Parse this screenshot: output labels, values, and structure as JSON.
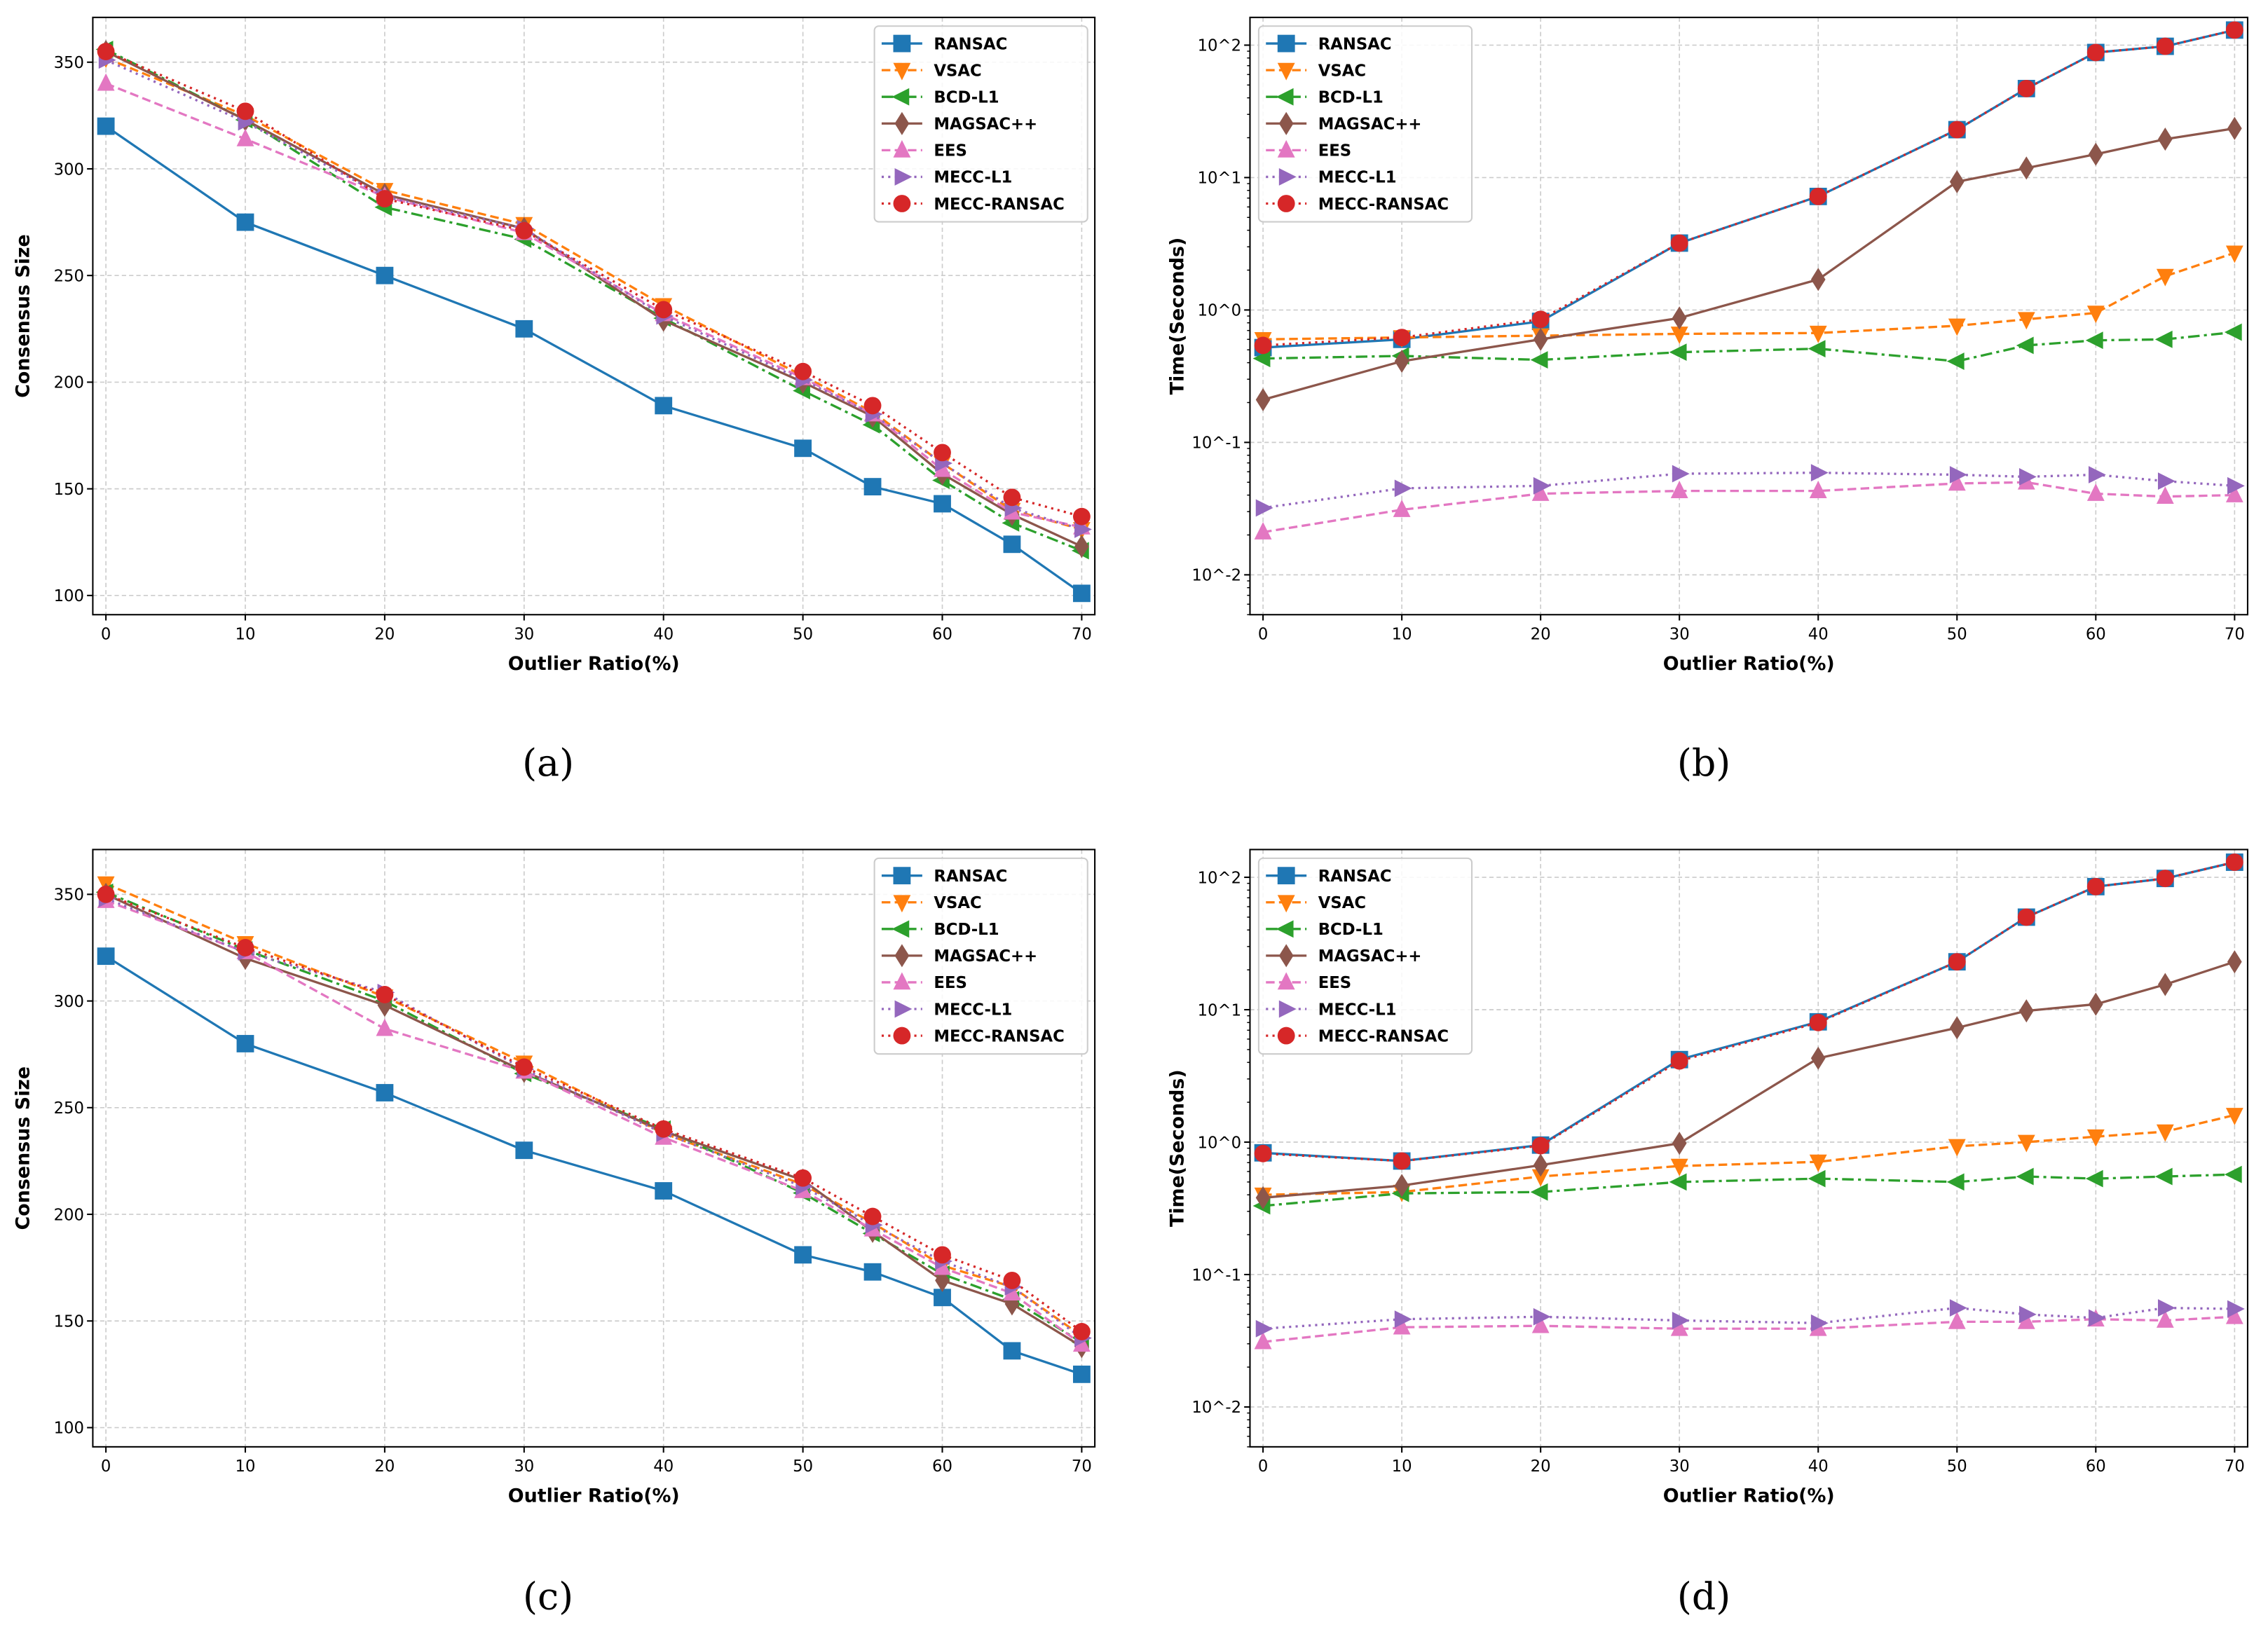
{
  "series_styles": [
    {
      "name": "RANSAC",
      "color": "#1f77b4",
      "dash": "",
      "marker": "square"
    },
    {
      "name": "VSAC",
      "color": "#ff7f0e",
      "dash": "6 3",
      "marker": "tri-down"
    },
    {
      "name": "BCD-L1",
      "color": "#2ca02c",
      "dash": "8 3 2 3",
      "marker": "tri-left"
    },
    {
      "name": "MAGSAC++",
      "color": "#8c564b",
      "dash": "",
      "marker": "diamond"
    },
    {
      "name": "EES",
      "color": "#e377c2",
      "dash": "6 3",
      "marker": "tri-up"
    },
    {
      "name": "MECC-L1",
      "color": "#9467bd",
      "dash": "1.5 3",
      "marker": "tri-right"
    },
    {
      "name": "MECC-RANSAC",
      "color": "#d62728",
      "dash": "1.5 3",
      "marker": "circle"
    }
  ],
  "chart_data": [
    {
      "panel": "(a)",
      "type": "line",
      "xlabel": "Outlier Ratio(%)",
      "ylabel": "Consensus Size",
      "yscale": "linear",
      "ylim": [
        91,
        371
      ],
      "xlim": [
        -0.94,
        70.94
      ],
      "xticks": [
        0,
        10,
        20,
        30,
        40,
        50,
        60,
        70
      ],
      "yticks": [
        100,
        150,
        200,
        250,
        300,
        350
      ],
      "ytick_labels": [
        "100",
        "150",
        "200",
        "250",
        "300",
        "350"
      ],
      "legend": "top-right",
      "grid": true,
      "x": [
        0,
        10,
        20,
        30,
        40,
        50,
        55,
        60,
        65,
        70
      ],
      "series": [
        {
          "name": "RANSAC",
          "values": [
            320,
            275,
            250,
            225,
            189,
            169,
            151,
            143,
            124,
            101
          ]
        },
        {
          "name": "VSAC",
          "values": [
            352,
            325,
            290,
            274,
            236,
            203,
            186,
            162,
            140,
            131
          ]
        },
        {
          "name": "BCD-L1",
          "values": [
            356,
            323,
            282,
            267,
            230,
            196,
            180,
            154,
            134,
            121
          ]
        },
        {
          "name": "MAGSAC++",
          "values": [
            355,
            323,
            288,
            272,
            229,
            200,
            184,
            157,
            138,
            123
          ]
        },
        {
          "name": "EES",
          "values": [
            340,
            314,
            287,
            270,
            232,
            202,
            185,
            159,
            139,
            132
          ]
        },
        {
          "name": "MECC-L1",
          "values": [
            351,
            322,
            287,
            272,
            231,
            201,
            185,
            162,
            141,
            131
          ]
        },
        {
          "name": "MECC-RANSAC",
          "values": [
            355,
            327,
            286,
            271,
            234,
            205,
            189,
            167,
            146,
            137
          ]
        }
      ]
    },
    {
      "panel": "(b)",
      "type": "line",
      "xlabel": "Outlier Ratio(%)",
      "ylabel": "Time(Seconds)",
      "yscale": "log",
      "ylim": [
        0.005,
        162
      ],
      "xlim": [
        -0.94,
        70.94
      ],
      "xticks": [
        0,
        10,
        20,
        30,
        40,
        50,
        60,
        70
      ],
      "yticks": [
        0.01,
        0.1,
        1,
        10,
        100
      ],
      "ytick_labels": [
        "10^-2",
        "10^-1",
        "10^0",
        "10^1",
        "10^2"
      ],
      "legend": "top-left",
      "grid": true,
      "x": [
        0,
        10,
        20,
        30,
        40,
        50,
        55,
        60,
        65,
        70
      ],
      "series": [
        {
          "name": "RANSAC",
          "values": [
            0.52,
            0.6,
            0.82,
            3.2,
            7.2,
            23,
            47,
            88,
            98,
            130
          ]
        },
        {
          "name": "VSAC",
          "values": [
            0.6,
            0.62,
            0.64,
            0.66,
            0.67,
            0.76,
            0.85,
            0.95,
            1.8,
            2.7
          ]
        },
        {
          "name": "BCD-L1",
          "values": [
            0.43,
            0.45,
            0.42,
            0.48,
            0.51,
            0.41,
            0.54,
            0.59,
            0.6,
            0.68
          ]
        },
        {
          "name": "MAGSAC++",
          "values": [
            0.21,
            0.41,
            0.6,
            0.87,
            1.7,
            9.3,
            11.8,
            15,
            19.5,
            23.5
          ]
        },
        {
          "name": "EES",
          "values": [
            0.021,
            0.031,
            0.041,
            0.043,
            0.043,
            0.049,
            0.05,
            0.041,
            0.039,
            0.04
          ]
        },
        {
          "name": "MECC-L1",
          "values": [
            0.032,
            0.045,
            0.047,
            0.058,
            0.059,
            0.057,
            0.055,
            0.057,
            0.051,
            0.047
          ]
        },
        {
          "name": "MECC-RANSAC",
          "values": [
            0.54,
            0.62,
            0.85,
            3.2,
            7.2,
            23,
            47,
            88,
            98,
            130
          ]
        }
      ]
    },
    {
      "panel": "(c)",
      "type": "line",
      "xlabel": "Outlier Ratio(%)",
      "ylabel": "Consensus Size",
      "yscale": "linear",
      "ylim": [
        91,
        371
      ],
      "xlim": [
        -0.94,
        70.94
      ],
      "xticks": [
        0,
        10,
        20,
        30,
        40,
        50,
        60,
        70
      ],
      "yticks": [
        100,
        150,
        200,
        250,
        300,
        350
      ],
      "ytick_labels": [
        "100",
        "150",
        "200",
        "250",
        "300",
        "350"
      ],
      "legend": "top-right",
      "grid": true,
      "x": [
        0,
        10,
        20,
        30,
        40,
        50,
        55,
        60,
        65,
        70
      ],
      "series": [
        {
          "name": "RANSAC",
          "values": [
            321,
            280,
            257,
            230,
            211,
            181,
            173,
            161,
            136,
            125
          ]
        },
        {
          "name": "VSAC",
          "values": [
            355,
            327,
            302,
            271,
            238,
            214,
            196,
            176,
            166,
            143
          ]
        },
        {
          "name": "BCD-L1",
          "values": [
            351,
            324,
            300,
            266,
            240,
            210,
            191,
            172,
            160,
            140
          ]
        },
        {
          "name": "MAGSAC++",
          "values": [
            350,
            320,
            298,
            267,
            239,
            216,
            192,
            169,
            158,
            138
          ]
        },
        {
          "name": "EES",
          "values": [
            347,
            323,
            287,
            267,
            236,
            211,
            193,
            175,
            163,
            139
          ]
        },
        {
          "name": "MECC-L1",
          "values": [
            348,
            323,
            304,
            268,
            238,
            213,
            195,
            178,
            166,
            142
          ]
        },
        {
          "name": "MECC-RANSAC",
          "values": [
            350,
            325,
            303,
            269,
            240,
            217,
            199,
            181,
            169,
            145
          ]
        }
      ]
    },
    {
      "panel": "(d)",
      "type": "line",
      "xlabel": "Outlier Ratio(%)",
      "ylabel": "Time(Seconds)",
      "yscale": "log",
      "ylim": [
        0.005,
        162
      ],
      "xlim": [
        -0.94,
        70.94
      ],
      "xticks": [
        0,
        10,
        20,
        30,
        40,
        50,
        60,
        70
      ],
      "yticks": [
        0.01,
        0.1,
        1,
        10,
        100
      ],
      "ytick_labels": [
        "10^-2",
        "10^-1",
        "10^0",
        "10^1",
        "10^2"
      ],
      "legend": "top-left",
      "grid": true,
      "x": [
        0,
        10,
        20,
        30,
        40,
        50,
        55,
        60,
        65,
        70
      ],
      "series": [
        {
          "name": "RANSAC",
          "values": [
            0.83,
            0.72,
            0.95,
            4.2,
            8.1,
            23,
            50,
            85,
            98,
            130
          ]
        },
        {
          "name": "VSAC",
          "values": [
            0.4,
            0.42,
            0.55,
            0.66,
            0.71,
            0.93,
            1.0,
            1.1,
            1.2,
            1.6
          ]
        },
        {
          "name": "BCD-L1",
          "values": [
            0.33,
            0.41,
            0.42,
            0.5,
            0.53,
            0.5,
            0.55,
            0.53,
            0.55,
            0.57
          ]
        },
        {
          "name": "MAGSAC++",
          "values": [
            0.38,
            0.47,
            0.67,
            0.98,
            4.3,
            7.3,
            9.8,
            11,
            15.5,
            23
          ]
        },
        {
          "name": "EES",
          "values": [
            0.031,
            0.04,
            0.041,
            0.039,
            0.039,
            0.044,
            0.044,
            0.046,
            0.045,
            0.048
          ]
        },
        {
          "name": "MECC-L1",
          "values": [
            0.039,
            0.046,
            0.048,
            0.045,
            0.043,
            0.056,
            0.05,
            0.047,
            0.056,
            0.055
          ]
        },
        {
          "name": "MECC-RANSAC",
          "values": [
            0.82,
            0.72,
            0.94,
            4.1,
            8.0,
            23,
            50,
            85,
            98,
            130
          ]
        }
      ]
    }
  ]
}
